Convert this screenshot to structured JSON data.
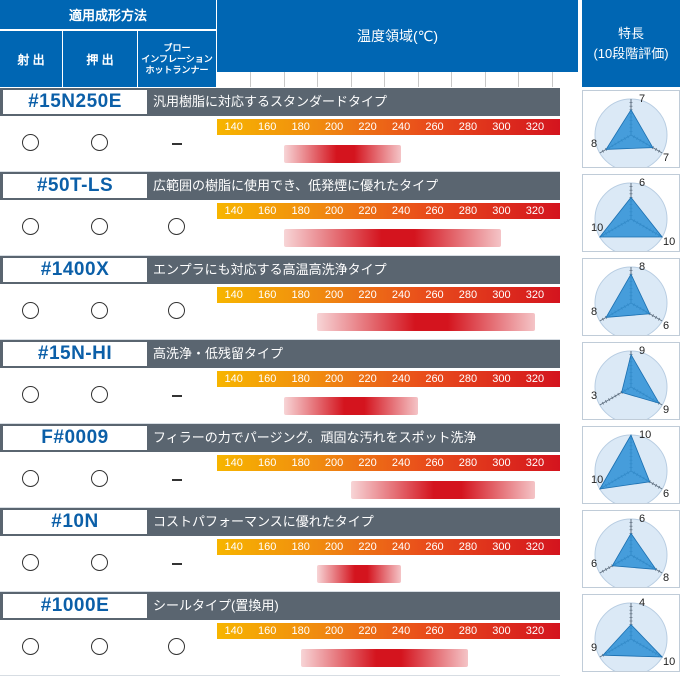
{
  "header": {
    "method_group": "適用成形方法",
    "injection": "射 出",
    "extrusion": "押 出",
    "blow_line1": "ブロー",
    "blow_line2": "インフレーション",
    "blow_line3": "ホットランナー",
    "temperature": "温度領域(℃)",
    "feature_line1": "特長",
    "feature_line2": "(10段階評価)"
  },
  "scale_labels": [
    "140",
    "160",
    "180",
    "200",
    "220",
    "240",
    "260",
    "280",
    "300",
    "320"
  ],
  "symbols": {
    "yes": "○",
    "no": "–"
  },
  "colors": {
    "header_blue": "#0066b3",
    "title_gray": "#5a6570",
    "product_text": "#0b5fa8",
    "bar_red": "#d4141e",
    "radar_fill": "#2c8fd6"
  },
  "products": [
    {
      "name": "#15N250E",
      "description": "汎用樹脂に対応するスタンダードタイプ",
      "injection": "yes",
      "extrusion": "yes",
      "blow": "no",
      "temp_min": 170,
      "temp_max": 240,
      "radar": [
        7,
        8,
        7
      ]
    },
    {
      "name": "#50T-LS",
      "description": "広範囲の樹脂に使用でき、低発煙に優れたタイプ",
      "injection": "yes",
      "extrusion": "yes",
      "blow": "yes",
      "temp_min": 170,
      "temp_max": 300,
      "radar": [
        6,
        10,
        10
      ]
    },
    {
      "name": "#1400X",
      "description": "エンプラにも対応する高温高洗浄タイプ",
      "injection": "yes",
      "extrusion": "yes",
      "blow": "yes",
      "temp_min": 190,
      "temp_max": 320,
      "radar": [
        8,
        8,
        6
      ]
    },
    {
      "name": "#15N-HI",
      "description": "高洗浄・低残留タイプ",
      "injection": "yes",
      "extrusion": "yes",
      "blow": "no",
      "temp_min": 170,
      "temp_max": 250,
      "radar": [
        9,
        3,
        9
      ]
    },
    {
      "name": "F#0009",
      "description": "フィラーの力でパージング。頑固な汚れをスポット洗浄",
      "injection": "yes",
      "extrusion": "yes",
      "blow": "no",
      "temp_min": 210,
      "temp_max": 320,
      "radar": [
        10,
        10,
        6
      ]
    },
    {
      "name": "#10N",
      "description": "コストパフォーマンスに優れたタイプ",
      "injection": "yes",
      "extrusion": "yes",
      "blow": "no",
      "temp_min": 190,
      "temp_max": 240,
      "radar": [
        6,
        6,
        8
      ]
    },
    {
      "name": "#1000E",
      "description": "シールタイプ(置換用)",
      "injection": "yes",
      "extrusion": "yes",
      "blow": "yes",
      "temp_min": 180,
      "temp_max": 280,
      "radar": [
        4,
        9,
        10
      ]
    }
  ]
}
